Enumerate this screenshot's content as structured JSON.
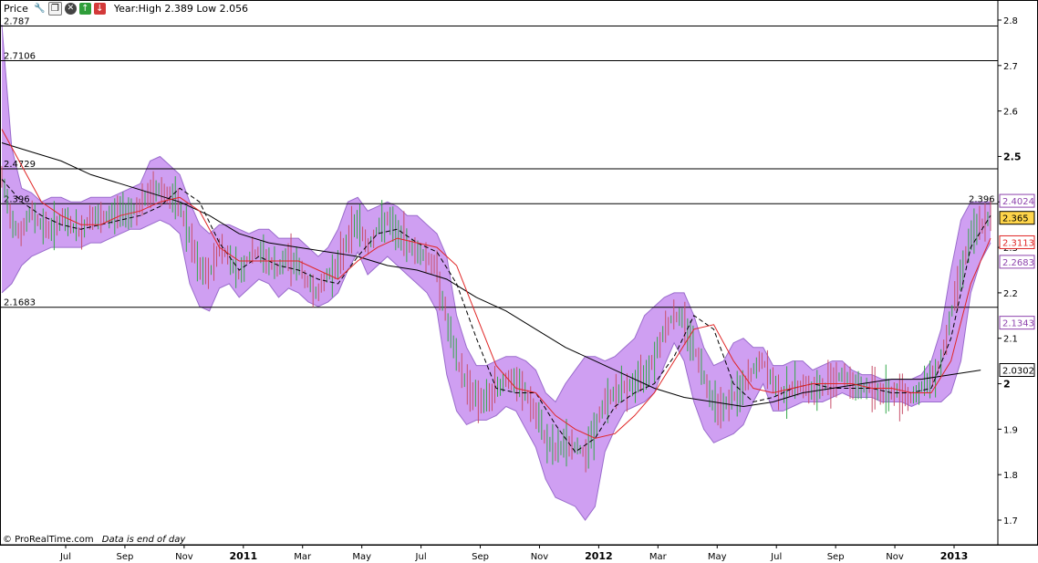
{
  "toolbar": {
    "title": "Price",
    "range_text": "Year:High 2.389 Low 2.056",
    "icons": [
      "wrench-icon",
      "window-icon",
      "close-icon",
      "arrow-up-icon",
      "arrow-down-icon"
    ]
  },
  "footer": {
    "brand": "© ProRealTime.com",
    "note": "Data is end of day"
  },
  "colors": {
    "band_fill": "#cf9ff2",
    "band_edge": "#9a6ccc",
    "price_up": "#35a84a",
    "price_down": "#c8506a",
    "ma_short": "#e02626",
    "ma_mid": "#000000",
    "ma_long": "#000000",
    "hline": "#000000",
    "current_badge": "#ffd54a"
  },
  "chart_data": {
    "type": "line",
    "x_tick_labels": [
      "Jul",
      "Sep",
      "Nov",
      "2011",
      "Mar",
      "May",
      "Jul",
      "Sep",
      "Nov",
      "2012",
      "Mar",
      "May",
      "Jul",
      "Sep",
      "Nov",
      "2013"
    ],
    "bold_x_ticks": [
      "2011",
      "2012",
      "2013"
    ],
    "ylim": [
      1.65,
      2.82
    ],
    "y_ticks": [
      1.7,
      1.8,
      1.9,
      2.0,
      2.1,
      2.2,
      2.3,
      2.4,
      2.5,
      2.6,
      2.7,
      2.8
    ],
    "y_tick_labels": [
      "1.7",
      "1.8",
      "1.9",
      "2",
      "2.1",
      "2.2",
      "2.3",
      "2.4",
      "2.5",
      "2.6",
      "2.7",
      "2.8"
    ],
    "bold_y_ticks": [
      "2",
      "2.5"
    ],
    "horizontal_levels": [
      {
        "label": "2.787",
        "value": 2.787
      },
      {
        "label": "2.7106",
        "value": 2.7106
      },
      {
        "label": "2.4729",
        "value": 2.4729
      },
      {
        "label": "2.396",
        "value": 2.396
      },
      {
        "label": "2.1683",
        "value": 2.1683
      }
    ],
    "right_annotation": {
      "label": "2.396",
      "value": 2.396
    },
    "right_badges": [
      {
        "label": "2.4024",
        "value": 2.4024,
        "style": "outline",
        "color": "#8e44ad"
      },
      {
        "label": "2.365",
        "value": 2.365,
        "style": "filled",
        "color": "#ffd54a"
      },
      {
        "label": "2.3113",
        "value": 2.3113,
        "style": "outline",
        "color": "#e02626"
      },
      {
        "label": "2.2683",
        "value": 2.2683,
        "style": "outline",
        "color": "#8e44ad"
      },
      {
        "label": "2.1343",
        "value": 2.1343,
        "style": "outline",
        "color": "#8e44ad"
      },
      {
        "label": "2.0302",
        "value": 2.0302,
        "style": "outline",
        "color": "#000000"
      }
    ],
    "series": [
      {
        "kind": "price_mid",
        "x": [
          0,
          0.01,
          0.02,
          0.03,
          0.04,
          0.05,
          0.06,
          0.07,
          0.08,
          0.09,
          0.1,
          0.11,
          0.12,
          0.13,
          0.14,
          0.15,
          0.16,
          0.17,
          0.18,
          0.19,
          0.2,
          0.21,
          0.22,
          0.23,
          0.24,
          0.25,
          0.26,
          0.27,
          0.28,
          0.29,
          0.3,
          0.31,
          0.32,
          0.33,
          0.34,
          0.35,
          0.36,
          0.37,
          0.38,
          0.39,
          0.4,
          0.41,
          0.42,
          0.43,
          0.44,
          0.45,
          0.46,
          0.47,
          0.48,
          0.49,
          0.5,
          0.51,
          0.52,
          0.53,
          0.54,
          0.55,
          0.56,
          0.57,
          0.58,
          0.59,
          0.6,
          0.61,
          0.62,
          0.63,
          0.64,
          0.65,
          0.66,
          0.67,
          0.68,
          0.69,
          0.7,
          0.71,
          0.72,
          0.73,
          0.74,
          0.75,
          0.76,
          0.77,
          0.78,
          0.79,
          0.8,
          0.81,
          0.82,
          0.83,
          0.84,
          0.85,
          0.86,
          0.87,
          0.88,
          0.89,
          0.9,
          0.91,
          0.92,
          0.93,
          0.94,
          0.95,
          0.96,
          0.97,
          0.98,
          0.99,
          1.0
        ],
        "y": [
          2.45,
          2.36,
          2.33,
          2.38,
          2.35,
          2.34,
          2.36,
          2.35,
          2.33,
          2.37,
          2.36,
          2.37,
          2.38,
          2.38,
          2.39,
          2.42,
          2.43,
          2.41,
          2.39,
          2.32,
          2.25,
          2.24,
          2.3,
          2.28,
          2.24,
          2.28,
          2.29,
          2.27,
          2.25,
          2.28,
          2.26,
          2.22,
          2.2,
          2.24,
          2.26,
          2.32,
          2.36,
          2.3,
          2.34,
          2.36,
          2.33,
          2.31,
          2.29,
          2.28,
          2.25,
          2.14,
          2.05,
          2.0,
          1.97,
          1.96,
          1.99,
          2.01,
          2.0,
          1.98,
          1.93,
          1.88,
          1.85,
          1.87,
          1.86,
          1.85,
          1.9,
          1.96,
          1.98,
          1.99,
          2.0,
          2.02,
          2.06,
          2.12,
          2.15,
          2.14,
          2.08,
          2.02,
          1.96,
          1.95,
          1.97,
          1.99,
          2.03,
          2.05,
          2.0,
          1.98,
          1.99,
          2.0,
          1.98,
          1.99,
          2.01,
          2.02,
          2.0,
          1.99,
          1.99,
          1.98,
          1.98,
          1.98,
          1.97,
          1.99,
          2.01,
          2.05,
          2.15,
          2.25,
          2.32,
          2.35,
          2.36
        ]
      },
      {
        "kind": "band_upper",
        "x": [
          0,
          0.01,
          0.02,
          0.03,
          0.04,
          0.05,
          0.06,
          0.07,
          0.08,
          0.09,
          0.1,
          0.11,
          0.12,
          0.13,
          0.14,
          0.15,
          0.16,
          0.17,
          0.18,
          0.19,
          0.2,
          0.21,
          0.22,
          0.23,
          0.24,
          0.25,
          0.26,
          0.27,
          0.28,
          0.29,
          0.3,
          0.31,
          0.32,
          0.33,
          0.34,
          0.35,
          0.36,
          0.37,
          0.38,
          0.39,
          0.4,
          0.41,
          0.42,
          0.43,
          0.44,
          0.45,
          0.46,
          0.47,
          0.48,
          0.49,
          0.5,
          0.51,
          0.52,
          0.53,
          0.54,
          0.55,
          0.56,
          0.57,
          0.58,
          0.59,
          0.6,
          0.61,
          0.62,
          0.63,
          0.64,
          0.65,
          0.66,
          0.67,
          0.68,
          0.69,
          0.7,
          0.71,
          0.72,
          0.73,
          0.74,
          0.75,
          0.76,
          0.77,
          0.78,
          0.79,
          0.8,
          0.81,
          0.82,
          0.83,
          0.84,
          0.85,
          0.86,
          0.87,
          0.88,
          0.89,
          0.9,
          0.91,
          0.92,
          0.93,
          0.94,
          0.95,
          0.96,
          0.97,
          0.98,
          0.99,
          1.0
        ],
        "y": [
          2.79,
          2.52,
          2.43,
          2.42,
          2.4,
          2.41,
          2.41,
          2.4,
          2.4,
          2.41,
          2.41,
          2.41,
          2.42,
          2.43,
          2.44,
          2.49,
          2.5,
          2.48,
          2.46,
          2.4,
          2.35,
          2.33,
          2.35,
          2.35,
          2.34,
          2.33,
          2.34,
          2.34,
          2.32,
          2.32,
          2.32,
          2.3,
          2.28,
          2.3,
          2.34,
          2.4,
          2.41,
          2.38,
          2.39,
          2.4,
          2.39,
          2.37,
          2.37,
          2.35,
          2.33,
          2.28,
          2.15,
          2.08,
          2.04,
          2.04,
          2.05,
          2.06,
          2.06,
          2.05,
          2.03,
          1.98,
          1.96,
          2.0,
          2.03,
          2.06,
          2.06,
          2.05,
          2.06,
          2.08,
          2.1,
          2.15,
          2.17,
          2.19,
          2.2,
          2.2,
          2.15,
          2.08,
          2.04,
          2.05,
          2.09,
          2.1,
          2.08,
          2.08,
          2.04,
          2.04,
          2.05,
          2.05,
          2.03,
          2.04,
          2.05,
          2.05,
          2.03,
          2.02,
          2.02,
          2.01,
          2.01,
          2.01,
          2.01,
          2.02,
          2.05,
          2.12,
          2.25,
          2.36,
          2.4,
          2.4,
          2.4
        ]
      },
      {
        "kind": "band_lower",
        "x": [
          0,
          0.01,
          0.02,
          0.03,
          0.04,
          0.05,
          0.06,
          0.07,
          0.08,
          0.09,
          0.1,
          0.11,
          0.12,
          0.13,
          0.14,
          0.15,
          0.16,
          0.17,
          0.18,
          0.19,
          0.2,
          0.21,
          0.22,
          0.23,
          0.24,
          0.25,
          0.26,
          0.27,
          0.28,
          0.29,
          0.3,
          0.31,
          0.32,
          0.33,
          0.34,
          0.35,
          0.36,
          0.37,
          0.38,
          0.39,
          0.4,
          0.41,
          0.42,
          0.43,
          0.44,
          0.45,
          0.46,
          0.47,
          0.48,
          0.49,
          0.5,
          0.51,
          0.52,
          0.53,
          0.54,
          0.55,
          0.56,
          0.57,
          0.58,
          0.59,
          0.6,
          0.61,
          0.62,
          0.63,
          0.64,
          0.65,
          0.66,
          0.67,
          0.68,
          0.69,
          0.7,
          0.71,
          0.72,
          0.73,
          0.74,
          0.75,
          0.76,
          0.77,
          0.78,
          0.79,
          0.8,
          0.81,
          0.82,
          0.83,
          0.84,
          0.85,
          0.86,
          0.87,
          0.88,
          0.89,
          0.9,
          0.91,
          0.92,
          0.93,
          0.94,
          0.95,
          0.96,
          0.97,
          0.98,
          0.99,
          1.0
        ],
        "y": [
          2.2,
          2.22,
          2.26,
          2.28,
          2.29,
          2.3,
          2.3,
          2.3,
          2.3,
          2.31,
          2.31,
          2.32,
          2.33,
          2.34,
          2.34,
          2.35,
          2.36,
          2.35,
          2.33,
          2.22,
          2.17,
          2.16,
          2.21,
          2.22,
          2.19,
          2.21,
          2.23,
          2.22,
          2.19,
          2.21,
          2.2,
          2.18,
          2.17,
          2.18,
          2.2,
          2.25,
          2.29,
          2.24,
          2.26,
          2.28,
          2.26,
          2.24,
          2.22,
          2.2,
          2.16,
          2.02,
          1.94,
          1.91,
          1.92,
          1.92,
          1.93,
          1.95,
          1.94,
          1.9,
          1.86,
          1.79,
          1.75,
          1.74,
          1.73,
          1.7,
          1.73,
          1.85,
          1.9,
          1.94,
          1.95,
          1.96,
          1.98,
          2.04,
          2.09,
          2.05,
          1.96,
          1.9,
          1.87,
          1.88,
          1.89,
          1.91,
          1.96,
          2.0,
          1.94,
          1.94,
          1.95,
          1.96,
          1.96,
          1.96,
          1.97,
          1.98,
          1.97,
          1.97,
          1.97,
          1.96,
          1.96,
          1.96,
          1.95,
          1.96,
          1.96,
          1.96,
          1.98,
          2.05,
          2.2,
          2.27,
          2.31
        ]
      },
      {
        "kind": "ma_short",
        "x": [
          0,
          0.02,
          0.04,
          0.06,
          0.08,
          0.1,
          0.12,
          0.14,
          0.16,
          0.18,
          0.2,
          0.22,
          0.24,
          0.26,
          0.28,
          0.3,
          0.32,
          0.34,
          0.36,
          0.38,
          0.4,
          0.42,
          0.44,
          0.46,
          0.48,
          0.5,
          0.52,
          0.54,
          0.56,
          0.58,
          0.6,
          0.62,
          0.64,
          0.66,
          0.68,
          0.7,
          0.72,
          0.74,
          0.76,
          0.78,
          0.8,
          0.82,
          0.84,
          0.86,
          0.88,
          0.9,
          0.92,
          0.94,
          0.96,
          0.98,
          1.0
        ],
        "y": [
          2.56,
          2.48,
          2.4,
          2.37,
          2.35,
          2.35,
          2.37,
          2.38,
          2.4,
          2.41,
          2.38,
          2.3,
          2.27,
          2.27,
          2.27,
          2.27,
          2.25,
          2.23,
          2.27,
          2.3,
          2.32,
          2.31,
          2.3,
          2.26,
          2.15,
          2.04,
          1.99,
          1.98,
          1.93,
          1.9,
          1.88,
          1.89,
          1.93,
          1.98,
          2.05,
          2.12,
          2.13,
          2.05,
          1.99,
          1.98,
          1.99,
          2.0,
          2.0,
          2.0,
          1.99,
          1.99,
          1.98,
          1.98,
          2.05,
          2.22,
          2.32
        ]
      },
      {
        "kind": "ma_mid",
        "x": [
          0,
          0.02,
          0.04,
          0.06,
          0.08,
          0.1,
          0.12,
          0.14,
          0.16,
          0.18,
          0.2,
          0.22,
          0.24,
          0.26,
          0.28,
          0.3,
          0.32,
          0.34,
          0.36,
          0.38,
          0.4,
          0.42,
          0.44,
          0.46,
          0.48,
          0.5,
          0.52,
          0.54,
          0.56,
          0.58,
          0.6,
          0.62,
          0.64,
          0.66,
          0.68,
          0.7,
          0.72,
          0.74,
          0.76,
          0.78,
          0.8,
          0.82,
          0.84,
          0.86,
          0.88,
          0.9,
          0.92,
          0.94,
          0.96,
          0.98,
          1.0
        ],
        "y": [
          2.45,
          2.4,
          2.37,
          2.35,
          2.34,
          2.35,
          2.36,
          2.37,
          2.39,
          2.43,
          2.4,
          2.31,
          2.25,
          2.28,
          2.26,
          2.25,
          2.23,
          2.22,
          2.28,
          2.33,
          2.34,
          2.31,
          2.29,
          2.22,
          2.1,
          1.99,
          1.98,
          1.98,
          1.91,
          1.85,
          1.88,
          1.95,
          1.98,
          2.0,
          2.06,
          2.15,
          2.12,
          2.0,
          1.96,
          1.97,
          1.99,
          2.0,
          1.99,
          1.99,
          1.99,
          1.98,
          1.98,
          1.99,
          2.1,
          2.3,
          2.37
        ]
      },
      {
        "kind": "ma_long",
        "x": [
          0,
          0.03,
          0.06,
          0.09,
          0.12,
          0.15,
          0.18,
          0.21,
          0.24,
          0.27,
          0.3,
          0.33,
          0.36,
          0.39,
          0.42,
          0.45,
          0.48,
          0.51,
          0.54,
          0.57,
          0.6,
          0.63,
          0.66,
          0.69,
          0.72,
          0.75,
          0.78,
          0.81,
          0.84,
          0.87,
          0.9,
          0.93,
          0.96,
          0.99
        ],
        "y": [
          2.53,
          2.51,
          2.49,
          2.46,
          2.44,
          2.42,
          2.4,
          2.37,
          2.33,
          2.31,
          2.3,
          2.29,
          2.28,
          2.26,
          2.25,
          2.23,
          2.19,
          2.16,
          2.12,
          2.08,
          2.05,
          2.02,
          1.99,
          1.97,
          1.96,
          1.95,
          1.96,
          1.98,
          1.99,
          2.0,
          2.01,
          2.01,
          2.02,
          2.03
        ]
      }
    ]
  }
}
